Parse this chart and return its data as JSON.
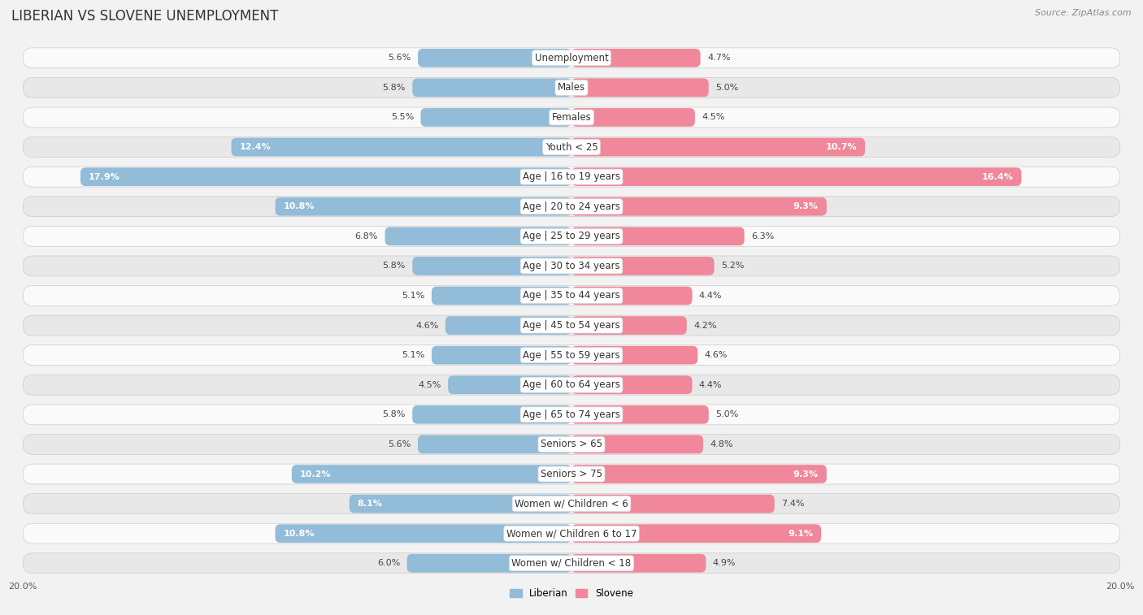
{
  "title": "LIBERIAN VS SLOVENE UNEMPLOYMENT",
  "source": "Source: ZipAtlas.com",
  "categories": [
    "Unemployment",
    "Males",
    "Females",
    "Youth < 25",
    "Age | 16 to 19 years",
    "Age | 20 to 24 years",
    "Age | 25 to 29 years",
    "Age | 30 to 34 years",
    "Age | 35 to 44 years",
    "Age | 45 to 54 years",
    "Age | 55 to 59 years",
    "Age | 60 to 64 years",
    "Age | 65 to 74 years",
    "Seniors > 65",
    "Seniors > 75",
    "Women w/ Children < 6",
    "Women w/ Children 6 to 17",
    "Women w/ Children < 18"
  ],
  "liberian": [
    5.6,
    5.8,
    5.5,
    12.4,
    17.9,
    10.8,
    6.8,
    5.8,
    5.1,
    4.6,
    5.1,
    4.5,
    5.8,
    5.6,
    10.2,
    8.1,
    10.8,
    6.0
  ],
  "slovene": [
    4.7,
    5.0,
    4.5,
    10.7,
    16.4,
    9.3,
    6.3,
    5.2,
    4.4,
    4.2,
    4.6,
    4.4,
    5.0,
    4.8,
    9.3,
    7.4,
    9.1,
    4.9
  ],
  "liberian_color": "#92bcd8",
  "slovene_color": "#f0879a",
  "background_color": "#f2f2f2",
  "row_color_light": "#fafafa",
  "row_color_dark": "#e8e8e8",
  "max_val": 20.0,
  "legend_liberian": "Liberian",
  "legend_slovene": "Slovene",
  "title_fontsize": 12,
  "label_fontsize": 8.5,
  "value_fontsize": 8,
  "source_fontsize": 8
}
